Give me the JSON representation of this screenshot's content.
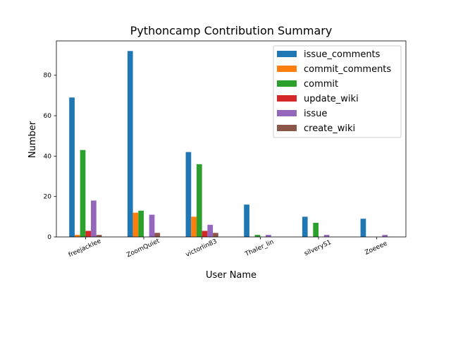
{
  "chart_data": {
    "type": "bar",
    "title": "Pythoncamp Contribution Summary",
    "xlabel": "User Name",
    "ylabel": "Number",
    "ylim": [
      0,
      97
    ],
    "yticks": [
      0,
      20,
      40,
      60,
      80
    ],
    "grid": false,
    "legend_position": "top-right",
    "categories": [
      "freejacklee",
      "ZoomQuiet",
      "victorlin83",
      "Thaler_lin",
      "silveryS1",
      "Zoeeee"
    ],
    "series": [
      {
        "name": "issue_comments",
        "color": "#1f77b4",
        "values": [
          69,
          92,
          42,
          16,
          10,
          9
        ]
      },
      {
        "name": "commit_comments",
        "color": "#ff7f0e",
        "values": [
          1,
          12,
          10,
          0,
          0,
          0
        ]
      },
      {
        "name": "commit",
        "color": "#2ca02c",
        "values": [
          43,
          13,
          36,
          1,
          7,
          0
        ]
      },
      {
        "name": "update_wiki",
        "color": "#d62728",
        "values": [
          3,
          0,
          3,
          0,
          0,
          0
        ]
      },
      {
        "name": "issue",
        "color": "#9467bd",
        "values": [
          18,
          11,
          6,
          1,
          1,
          1
        ]
      },
      {
        "name": "create_wiki",
        "color": "#8c564b",
        "values": [
          1,
          2,
          2,
          0,
          0,
          0
        ]
      }
    ]
  }
}
